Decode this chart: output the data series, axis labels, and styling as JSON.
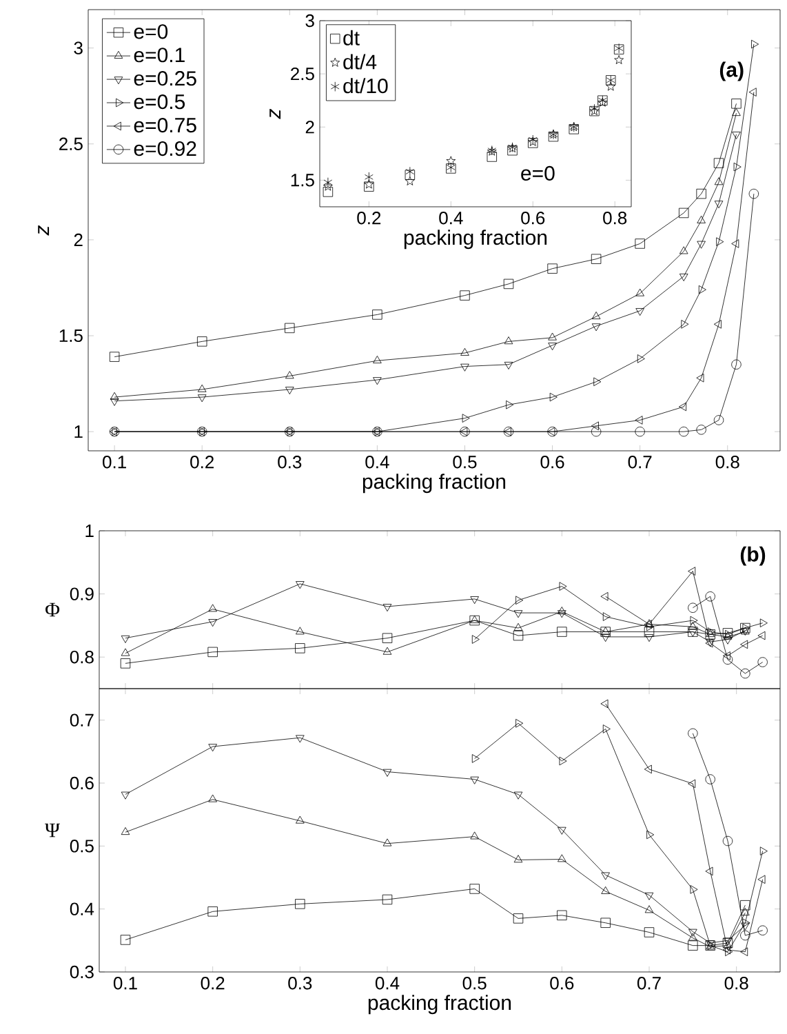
{
  "chart_data": [
    {
      "type": "line",
      "xlabel": "packing fraction",
      "ylabel": "z",
      "xlim": [
        0.07,
        0.86
      ],
      "ylim": [
        0.9,
        3.2
      ],
      "xticks": [
        0.1,
        0.2,
        0.3,
        0.4,
        0.5,
        0.6,
        0.7,
        0.8
      ],
      "yticks": [
        1,
        1.5,
        2,
        2.5,
        3
      ],
      "legend": "top left",
      "line_style": "solid",
      "annotations": [
        "(a)"
      ],
      "series": [
        {
          "name": "e=0",
          "color": "#000000",
          "marker": "square",
          "x": [
            0.1,
            0.2,
            0.3,
            0.4,
            0.5,
            0.55,
            0.6,
            0.65,
            0.7,
            0.75,
            0.77,
            0.79,
            0.81
          ],
          "values": [
            1.39,
            1.47,
            1.54,
            1.61,
            1.71,
            1.77,
            1.85,
            1.9,
            1.98,
            2.14,
            2.24,
            2.4,
            2.71
          ]
        },
        {
          "name": "e=0.1",
          "color": "#000000",
          "marker": "triangle",
          "x": [
            0.1,
            0.2,
            0.3,
            0.4,
            0.5,
            0.55,
            0.6,
            0.65,
            0.7,
            0.75,
            0.77,
            0.79,
            0.81
          ],
          "values": [
            1.18,
            1.22,
            1.29,
            1.37,
            1.41,
            1.47,
            1.49,
            1.6,
            1.72,
            1.94,
            2.1,
            2.3,
            2.66
          ]
        },
        {
          "name": "e=0.25",
          "color": "#000000",
          "marker": "triangle-down",
          "x": [
            0.1,
            0.2,
            0.3,
            0.4,
            0.5,
            0.55,
            0.6,
            0.65,
            0.7,
            0.75,
            0.77,
            0.79,
            0.81
          ],
          "values": [
            1.16,
            1.18,
            1.22,
            1.27,
            1.34,
            1.35,
            1.45,
            1.55,
            1.63,
            1.81,
            1.98,
            2.19,
            2.55
          ]
        },
        {
          "name": "e=0.5",
          "color": "#000000",
          "marker": "triangle-right",
          "x": [
            0.1,
            0.2,
            0.3,
            0.4,
            0.5,
            0.55,
            0.6,
            0.65,
            0.7,
            0.75,
            0.77,
            0.79,
            0.81,
            0.83
          ],
          "values": [
            1,
            1,
            1,
            1,
            1.07,
            1.14,
            1.18,
            1.26,
            1.38,
            1.56,
            1.74,
            1.99,
            2.38,
            3.02
          ]
        },
        {
          "name": "e=0.75",
          "color": "#000000",
          "marker": "triangle-left",
          "x": [
            0.1,
            0.2,
            0.3,
            0.4,
            0.5,
            0.55,
            0.6,
            0.65,
            0.7,
            0.75,
            0.77,
            0.79,
            0.81,
            0.83
          ],
          "values": [
            1,
            1,
            1,
            1,
            1,
            1,
            1,
            1.03,
            1.06,
            1.13,
            1.28,
            1.56,
            1.98,
            2.77
          ]
        },
        {
          "name": "e=0.92",
          "color": "#000000",
          "marker": "circle",
          "x": [
            0.1,
            0.2,
            0.3,
            0.4,
            0.5,
            0.55,
            0.6,
            0.65,
            0.7,
            0.75,
            0.77,
            0.79,
            0.81,
            0.83
          ],
          "values": [
            1,
            1,
            1,
            1,
            1,
            1,
            1,
            1,
            1,
            1.0,
            1.01,
            1.06,
            1.35,
            2.24
          ]
        }
      ]
    },
    {
      "type": "scatter",
      "xlabel": "packing fraction",
      "ylabel": "z",
      "xlim": [
        0.08,
        0.84
      ],
      "ylim": [
        1.25,
        3
      ],
      "xticks": [
        0.2,
        0.4,
        0.6,
        0.8
      ],
      "yticks": [
        1.5,
        2,
        2.5,
        3
      ],
      "legend": "top left",
      "annotations": [
        "e=0"
      ],
      "series": [
        {
          "name": "dt",
          "color": "#000000",
          "marker": "square",
          "x": [
            0.1,
            0.2,
            0.3,
            0.4,
            0.5,
            0.55,
            0.6,
            0.65,
            0.7,
            0.75,
            0.77,
            0.79,
            0.81
          ],
          "values": [
            1.39,
            1.44,
            1.55,
            1.61,
            1.72,
            1.78,
            1.85,
            1.91,
            1.98,
            2.15,
            2.25,
            2.44,
            2.73
          ]
        },
        {
          "name": "dt/4",
          "color": "#000000",
          "marker": "star",
          "x": [
            0.1,
            0.2,
            0.3,
            0.4,
            0.5,
            0.55,
            0.6,
            0.65,
            0.7,
            0.75,
            0.77,
            0.79,
            0.81
          ],
          "values": [
            1.44,
            1.46,
            1.49,
            1.68,
            1.77,
            1.8,
            1.86,
            1.93,
            2.0,
            2.15,
            2.23,
            2.38,
            2.63
          ]
        },
        {
          "name": "dt/10",
          "color": "#000000",
          "marker": "cross",
          "x": [
            0.1,
            0.2,
            0.3,
            0.4,
            0.5,
            0.55,
            0.6,
            0.65,
            0.7,
            0.75,
            0.77,
            0.79,
            0.81
          ],
          "values": [
            1.48,
            1.53,
            1.58,
            1.62,
            1.78,
            1.81,
            1.88,
            1.93,
            2.0,
            2.17,
            2.25,
            2.44,
            2.74
          ]
        }
      ]
    },
    {
      "type": "line",
      "ylabel": "Φ",
      "xlim": [
        0.07,
        0.85
      ],
      "ylim": [
        0.75,
        1
      ],
      "xticks": [
        0.1,
        0.2,
        0.3,
        0.4,
        0.5,
        0.6,
        0.7,
        0.8
      ],
      "yticks": [
        0.8,
        0.9,
        1
      ],
      "tick_labels": "y",
      "line_style": "solid",
      "annotations": [
        "(b)"
      ],
      "series": [
        {
          "color": "#000000",
          "marker": "square",
          "x": [
            0.1,
            0.2,
            0.3,
            0.4,
            0.5,
            0.55,
            0.6,
            0.65,
            0.7,
            0.75,
            0.77,
            0.79,
            0.81
          ],
          "values": [
            0.79,
            0.808,
            0.814,
            0.83,
            0.858,
            0.834,
            0.84,
            0.84,
            0.84,
            0.84,
            0.836,
            0.838,
            0.846
          ]
        },
        {
          "color": "#000000",
          "marker": "triangle",
          "x": [
            0.1,
            0.2,
            0.3,
            0.4,
            0.5,
            0.55,
            0.6,
            0.65,
            0.7,
            0.75,
            0.77,
            0.79,
            0.81
          ],
          "values": [
            0.806,
            0.876,
            0.84,
            0.808,
            0.858,
            0.846,
            0.872,
            0.84,
            0.852,
            0.848,
            0.836,
            0.832,
            0.84
          ]
        },
        {
          "color": "#000000",
          "marker": "triangle-down",
          "x": [
            0.1,
            0.2,
            0.3,
            0.4,
            0.5,
            0.55,
            0.6,
            0.65,
            0.7,
            0.75,
            0.77,
            0.79,
            0.81
          ],
          "values": [
            0.83,
            0.856,
            0.916,
            0.88,
            0.892,
            0.87,
            0.87,
            0.832,
            0.832,
            0.84,
            0.824,
            0.828,
            0.842
          ]
        },
        {
          "color": "#000000",
          "marker": "triangle-right",
          "x": [
            0.5,
            0.55,
            0.6,
            0.65,
            0.7,
            0.75,
            0.77,
            0.79,
            0.81,
            0.83
          ],
          "values": [
            0.828,
            0.89,
            0.912,
            0.864,
            0.848,
            0.858,
            0.84,
            0.836,
            0.846,
            0.854
          ]
        },
        {
          "color": "#000000",
          "marker": "triangle-left",
          "x": [
            0.65,
            0.7,
            0.75,
            0.77,
            0.79,
            0.81,
            0.83
          ],
          "values": [
            0.896,
            0.852,
            0.936,
            0.822,
            0.802,
            0.82,
            0.834
          ]
        },
        {
          "color": "#000000",
          "marker": "circle",
          "x": [
            0.75,
            0.77,
            0.79,
            0.81,
            0.83
          ],
          "values": [
            0.878,
            0.896,
            0.796,
            0.774,
            0.792
          ]
        }
      ]
    },
    {
      "type": "line",
      "xlabel": "packing fraction",
      "ylabel": "Ψ",
      "xlim": [
        0.07,
        0.85
      ],
      "ylim": [
        0.3,
        0.75
      ],
      "xticks": [
        0.1,
        0.2,
        0.3,
        0.4,
        0.5,
        0.6,
        0.7,
        0.8
      ],
      "yticks": [
        0.3,
        0.4,
        0.5,
        0.6,
        0.7
      ],
      "line_style": "solid",
      "series": [
        {
          "color": "#000000",
          "marker": "square",
          "x": [
            0.1,
            0.2,
            0.3,
            0.4,
            0.5,
            0.55,
            0.6,
            0.65,
            0.7,
            0.75,
            0.77,
            0.79,
            0.81
          ],
          "values": [
            0.351,
            0.396,
            0.408,
            0.415,
            0.432,
            0.385,
            0.39,
            0.378,
            0.363,
            0.342,
            0.342,
            0.346,
            0.406
          ]
        },
        {
          "color": "#000000",
          "marker": "triangle",
          "x": [
            0.1,
            0.2,
            0.3,
            0.4,
            0.5,
            0.55,
            0.6,
            0.65,
            0.7,
            0.75,
            0.77,
            0.79,
            0.81
          ],
          "values": [
            0.522,
            0.574,
            0.54,
            0.504,
            0.515,
            0.478,
            0.479,
            0.428,
            0.398,
            0.354,
            0.34,
            0.342,
            0.394
          ]
        },
        {
          "color": "#000000",
          "marker": "triangle-down",
          "x": [
            0.1,
            0.2,
            0.3,
            0.4,
            0.5,
            0.55,
            0.6,
            0.65,
            0.7,
            0.75,
            0.77,
            0.79,
            0.81
          ],
          "values": [
            0.582,
            0.658,
            0.672,
            0.618,
            0.606,
            0.582,
            0.526,
            0.454,
            0.422,
            0.364,
            0.346,
            0.35,
            0.374
          ]
        },
        {
          "color": "#000000",
          "marker": "triangle-right",
          "x": [
            0.5,
            0.55,
            0.6,
            0.65,
            0.7,
            0.75,
            0.77,
            0.79,
            0.81,
            0.83
          ],
          "values": [
            0.639,
            0.695,
            0.635,
            0.686,
            0.518,
            0.431,
            0.342,
            0.332,
            0.378,
            0.492
          ]
        },
        {
          "color": "#000000",
          "marker": "triangle-left",
          "x": [
            0.65,
            0.7,
            0.75,
            0.77,
            0.79,
            0.81,
            0.83
          ],
          "values": [
            0.726,
            0.622,
            0.599,
            0.46,
            0.335,
            0.332,
            0.447
          ]
        },
        {
          "color": "#000000",
          "marker": "circle",
          "x": [
            0.75,
            0.77,
            0.79,
            0.81,
            0.83
          ],
          "values": [
            0.679,
            0.606,
            0.508,
            0.358,
            0.366
          ]
        }
      ]
    }
  ]
}
